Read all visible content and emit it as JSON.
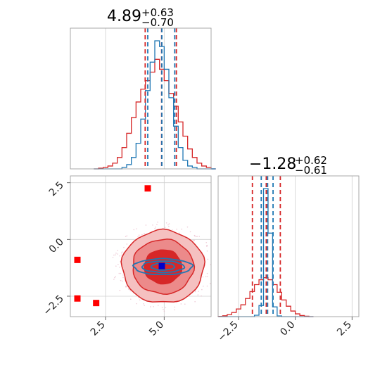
{
  "chart_data": [
    {
      "type": "histogram",
      "panel": "top-left",
      "title_value": "4.89",
      "title_plus": "+0.63",
      "title_minus": "−0.70",
      "xlim": [
        1.0,
        7.0
      ],
      "bins_x": [
        2.1,
        2.3,
        2.5,
        2.7,
        2.9,
        3.1,
        3.3,
        3.5,
        3.7,
        3.9,
        4.1,
        4.3,
        4.5,
        4.7,
        4.9,
        5.1,
        5.3,
        5.5,
        5.7,
        5.9,
        6.1,
        6.3,
        6.5,
        6.7,
        6.9,
        7.1
      ],
      "series": [
        {
          "color": "#d62728",
          "values": [
            0,
            0.005,
            0.01,
            0.02,
            0.04,
            0.08,
            0.15,
            0.25,
            0.36,
            0.47,
            0.56,
            0.62,
            0.68,
            0.77,
            0.7,
            0.62,
            0.53,
            0.44,
            0.33,
            0.23,
            0.14,
            0.08,
            0.04,
            0.02,
            0.01,
            0
          ]
        },
        {
          "color": "#1f77b4",
          "values": [
            0,
            0,
            0,
            0,
            0,
            0,
            0.01,
            0.03,
            0.08,
            0.18,
            0.35,
            0.55,
            0.75,
            0.9,
            0.86,
            0.7,
            0.5,
            0.3,
            0.15,
            0.06,
            0.02,
            0.01,
            0,
            0,
            0,
            0
          ]
        }
      ],
      "quantiles": [
        {
          "color": "#d62728",
          "x": [
            4.19,
            4.89,
            5.52
          ]
        },
        {
          "color": "#1f77b4",
          "x": [
            4.3,
            4.9,
            5.45
          ]
        }
      ]
    },
    {
      "type": "histogram",
      "panel": "bottom-right",
      "title_value": "−1.28",
      "title_plus": "+0.62",
      "title_minus": "−0.61",
      "xlim": [
        -3.4,
        2.8
      ],
      "xticks": [
        -2.5,
        0.0,
        2.5
      ],
      "xtick_labels": [
        "−2.5",
        "0.0",
        "2.5"
      ],
      "bins_x": [
        -3.3,
        -3.1,
        -2.9,
        -2.7,
        -2.5,
        -2.3,
        -2.1,
        -1.9,
        -1.7,
        -1.5,
        -1.3,
        -1.1,
        -0.9,
        -0.7,
        -0.5,
        -0.3,
        -0.1,
        0.1,
        0.3,
        0.5,
        0.7
      ],
      "series": [
        {
          "color": "#d62728",
          "values": [
            0.002,
            0.006,
            0.015,
            0.03,
            0.055,
            0.085,
            0.13,
            0.18,
            0.23,
            0.265,
            0.28,
            0.265,
            0.23,
            0.175,
            0.12,
            0.075,
            0.04,
            0.02,
            0.008,
            0.003,
            0
          ]
        },
        {
          "color": "#1f77b4",
          "values": [
            0,
            0,
            0,
            0,
            0,
            0,
            0,
            0,
            0.01,
            0.08,
            0.92,
            0.6,
            0.07,
            0.005,
            0,
            0,
            0,
            0,
            0,
            0,
            0
          ]
        }
      ],
      "quantiles": [
        {
          "color": "#d62728",
          "x": [
            -1.89,
            -1.28,
            -0.66
          ]
        },
        {
          "color": "#1f77b4",
          "x": [
            -1.5,
            -1.22,
            -0.98
          ]
        }
      ]
    },
    {
      "type": "contour",
      "panel": "bottom-left",
      "xlim": [
        1.0,
        7.0
      ],
      "ylim": [
        -3.4,
        2.8
      ],
      "xticks": [
        2.5,
        5.0
      ],
      "xtick_labels": [
        "2.5",
        "5.0"
      ],
      "yticks": [
        -2.5,
        0.0,
        2.5
      ],
      "ytick_labels": [
        "−2.5",
        "0.0",
        "2.5"
      ],
      "red_contours": {
        "color": "#d62728",
        "center": [
          4.95,
          -1.2
        ],
        "fill_colors": [
          "#f5c0c0",
          "#ec8a8a",
          "#d62728"
        ],
        "levels": [
          {
            "rx": 1.75,
            "ry": 1.6
          },
          {
            "rx": 1.3,
            "ry": 1.2
          },
          {
            "rx": 0.8,
            "ry": 0.75
          }
        ]
      },
      "blue_contours": {
        "color": "#1f77b4",
        "center": [
          4.95,
          -1.2
        ],
        "levels": [
          {
            "rx": 1.25,
            "ry": 0.35
          },
          {
            "rx": 0.9,
            "ry": 0.25
          },
          {
            "rx": 0.5,
            "ry": 0.15
          }
        ]
      },
      "truth_point": {
        "x": 4.9,
        "y": -1.17,
        "color": "#0000cc"
      },
      "red_squares": [
        {
          "x": 4.3,
          "y": 2.25
        },
        {
          "x": 1.3,
          "y": -0.9
        },
        {
          "x": 1.3,
          "y": -2.6
        },
        {
          "x": 2.1,
          "y": -2.8
        }
      ]
    }
  ]
}
